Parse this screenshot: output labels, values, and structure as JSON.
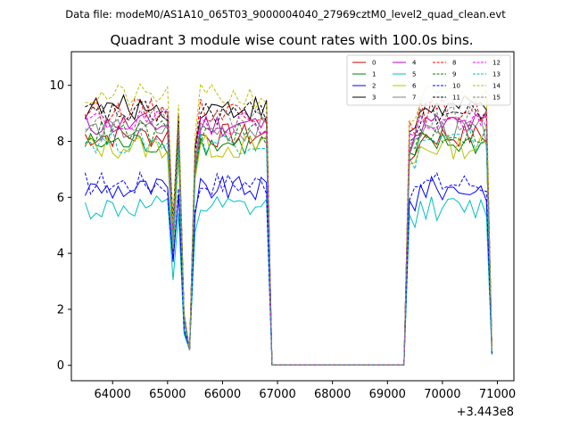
{
  "chart_data": {
    "type": "line",
    "suptitle": "Data file: modeM0/AS1A10_065T03_9000004040_27969cztM0_level2_quad_clean.evt",
    "title": "Quadrant 3 module wise count rates with 100.0s bins.",
    "xlabel": "",
    "ylabel": "",
    "x_offset_label": "+3.443e8",
    "xlim": [
      63250,
      71300
    ],
    "ylim": [
      -0.55,
      11.2
    ],
    "xticks": [
      64000,
      65000,
      66000,
      67000,
      68000,
      69000,
      70000,
      71000
    ],
    "xtick_labels": [
      "64000",
      "65000",
      "66000",
      "67000",
      "68000",
      "69000",
      "70000",
      "71000"
    ],
    "yticks": [
      0,
      2,
      4,
      6,
      8,
      10
    ],
    "ytick_labels": [
      "0",
      "2",
      "4",
      "6",
      "8",
      "10"
    ],
    "legend_position": "top-right",
    "segments": [
      {
        "start": 63500,
        "end": 65000
      },
      {
        "start": 65150,
        "end": 65150
      },
      {
        "start": 65400,
        "end": 65400
      },
      {
        "start": 65600,
        "end": 66800
      },
      {
        "start": 69300,
        "end": 70800
      }
    ],
    "series": [
      {
        "name": "0",
        "color": "#cc0000",
        "dash": "solid",
        "level": 8.2
      },
      {
        "name": "1",
        "color": "#008000",
        "dash": "solid",
        "level": 7.9
      },
      {
        "name": "2",
        "color": "#0000ff",
        "dash": "solid",
        "level": 6.3
      },
      {
        "name": "3",
        "color": "#000000",
        "dash": "solid",
        "level": 9.2
      },
      {
        "name": "4",
        "color": "#c000c0",
        "dash": "solid",
        "level": 8.6
      },
      {
        "name": "5",
        "color": "#00bfbf",
        "dash": "solid",
        "level": 5.6
      },
      {
        "name": "6",
        "color": "#bfbf00",
        "dash": "solid",
        "level": 7.8
      },
      {
        "name": "7",
        "color": "#808080",
        "dash": "solid",
        "level": 8.4
      },
      {
        "name": "8",
        "color": "#ff0000",
        "dash": "dashed",
        "level": 9.1
      },
      {
        "name": "9",
        "color": "#008000",
        "dash": "dashed",
        "level": 8.3
      },
      {
        "name": "10",
        "color": "#0000ff",
        "dash": "dashed",
        "level": 6.5
      },
      {
        "name": "11",
        "color": "#000000",
        "dash": "dashed",
        "level": 9.0
      },
      {
        "name": "12",
        "color": "#ff00ff",
        "dash": "dashed",
        "level": 8.7
      },
      {
        "name": "13",
        "color": "#00bfbf",
        "dash": "dashed",
        "level": 8.0
      },
      {
        "name": "14",
        "color": "#bfbf00",
        "dash": "dashed",
        "level": 9.6
      },
      {
        "name": "15",
        "color": "#808080",
        "dash": "dashed",
        "level": 8.8
      }
    ]
  }
}
